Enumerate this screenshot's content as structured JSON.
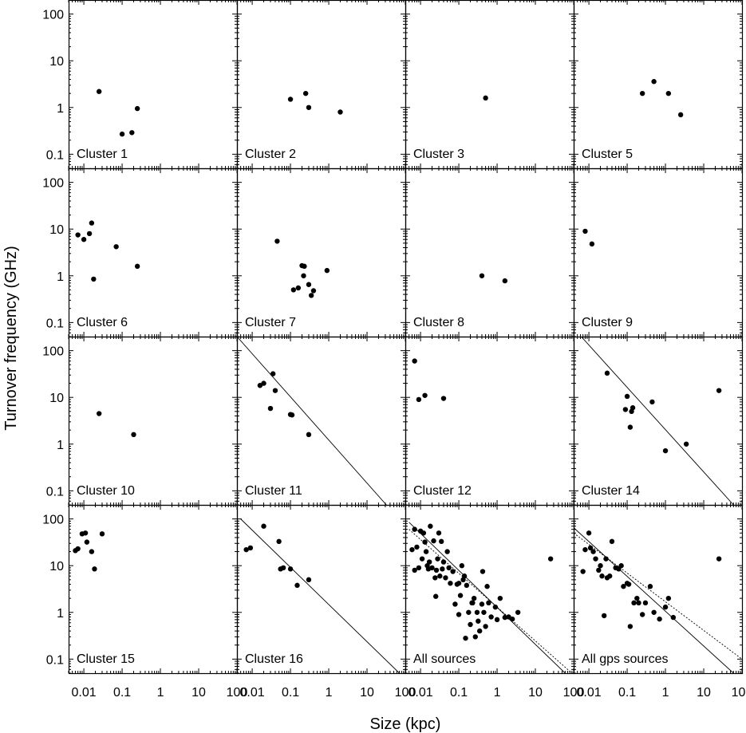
{
  "chart_data": {
    "type": "scatter",
    "xlabel": "Size (kpc)",
    "ylabel": "Turnover frequency (GHz)",
    "x_scale": "log",
    "y_scale": "log",
    "xlim": [
      0.004,
      100
    ],
    "ylim": [
      0.05,
      200
    ],
    "x_ticks": [
      "0.01",
      "0.1",
      "1",
      "10",
      "100"
    ],
    "y_ticks": [
      "100",
      "10",
      "1",
      "0.1"
    ],
    "panels": [
      {
        "label": "Cluster 1",
        "points": [
          [
            0.025,
            2.2
          ],
          [
            0.1,
            0.27
          ],
          [
            0.18,
            0.29
          ],
          [
            0.25,
            0.95
          ]
        ]
      },
      {
        "label": "Cluster 2",
        "points": [
          [
            0.1,
            1.5
          ],
          [
            0.25,
            2.0
          ],
          [
            0.3,
            1.0
          ],
          [
            2.0,
            0.8
          ]
        ]
      },
      {
        "label": "Cluster 3",
        "points": [
          [
            0.5,
            1.6
          ]
        ]
      },
      {
        "label": "Cluster 5",
        "points": [
          [
            0.25,
            2.0
          ],
          [
            0.5,
            3.6
          ],
          [
            1.2,
            2.0
          ],
          [
            2.5,
            0.7
          ]
        ]
      },
      {
        "label": "Cluster 6",
        "points": [
          [
            0.007,
            7.5
          ],
          [
            0.01,
            6.0
          ],
          [
            0.014,
            8.0
          ],
          [
            0.016,
            13.5
          ],
          [
            0.018,
            0.85
          ],
          [
            0.07,
            4.2
          ],
          [
            0.25,
            1.6
          ]
        ]
      },
      {
        "label": "Cluster 7",
        "points": [
          [
            0.045,
            5.5
          ],
          [
            0.12,
            0.5
          ],
          [
            0.16,
            0.55
          ],
          [
            0.2,
            1.65
          ],
          [
            0.22,
            1.0
          ],
          [
            0.23,
            1.6
          ],
          [
            0.3,
            0.65
          ],
          [
            0.35,
            0.38
          ],
          [
            0.4,
            0.48
          ],
          [
            0.9,
            1.3
          ]
        ]
      },
      {
        "label": "Cluster 8",
        "points": [
          [
            0.4,
            1.0
          ],
          [
            1.6,
            0.78
          ]
        ]
      },
      {
        "label": "Cluster 9",
        "points": [
          [
            0.008,
            9.0
          ],
          [
            0.012,
            4.8
          ]
        ]
      },
      {
        "label": "Cluster 10",
        "points": [
          [
            0.025,
            4.5
          ],
          [
            0.2,
            1.6
          ]
        ]
      },
      {
        "label": "Cluster 11",
        "points": [
          [
            0.016,
            18
          ],
          [
            0.02,
            20
          ],
          [
            0.03,
            5.8
          ],
          [
            0.035,
            32
          ],
          [
            0.04,
            14
          ],
          [
            0.1,
            4.3
          ],
          [
            0.11,
            4.2
          ],
          [
            0.3,
            1.6
          ]
        ],
        "fit": [
          [
            0.004,
            200
          ],
          [
            32,
            0.05
          ]
        ]
      },
      {
        "label": "Cluster 12",
        "points": [
          [
            0.007,
            60
          ],
          [
            0.009,
            9.0
          ],
          [
            0.013,
            11
          ],
          [
            0.04,
            9.5
          ]
        ]
      },
      {
        "label": "Cluster 14",
        "points": [
          [
            0.03,
            33
          ],
          [
            0.09,
            5.5
          ],
          [
            0.1,
            10.5
          ],
          [
            0.12,
            2.3
          ],
          [
            0.13,
            5.0
          ],
          [
            0.14,
            6.0
          ],
          [
            0.45,
            8.0
          ],
          [
            1.0,
            0.72
          ],
          [
            3.5,
            1.0
          ],
          [
            25,
            14
          ]
        ],
        "fit": [
          [
            0.0063,
            200
          ],
          [
            60,
            0.05
          ]
        ]
      },
      {
        "label": "Cluster 15",
        "points": [
          [
            0.006,
            21
          ],
          [
            0.007,
            23
          ],
          [
            0.009,
            48
          ],
          [
            0.011,
            50
          ],
          [
            0.012,
            32
          ],
          [
            0.016,
            20
          ],
          [
            0.019,
            8.5
          ],
          [
            0.03,
            48
          ]
        ]
      },
      {
        "label": "Cluster 16",
        "points": [
          [
            0.007,
            22
          ],
          [
            0.009,
            24
          ],
          [
            0.02,
            70
          ],
          [
            0.05,
            33
          ],
          [
            0.055,
            8.5
          ],
          [
            0.065,
            9.0
          ],
          [
            0.1,
            8.5
          ],
          [
            0.15,
            3.8
          ],
          [
            0.3,
            5.0
          ]
        ],
        "fit": [
          [
            0.005,
            100
          ],
          [
            70,
            0.05
          ]
        ]
      },
      {
        "label": "All sources",
        "points": [
          [
            0.006,
            22
          ],
          [
            0.007,
            8.0
          ],
          [
            0.007,
            60
          ],
          [
            0.008,
            25
          ],
          [
            0.009,
            9.0
          ],
          [
            0.01,
            55
          ],
          [
            0.011,
            14
          ],
          [
            0.012,
            50
          ],
          [
            0.013,
            32
          ],
          [
            0.014,
            20
          ],
          [
            0.015,
            10
          ],
          [
            0.016,
            8.5
          ],
          [
            0.017,
            12
          ],
          [
            0.018,
            70
          ],
          [
            0.02,
            9.0
          ],
          [
            0.022,
            34
          ],
          [
            0.024,
            5.5
          ],
          [
            0.025,
            2.2
          ],
          [
            0.026,
            8.0
          ],
          [
            0.028,
            14
          ],
          [
            0.03,
            50
          ],
          [
            0.032,
            6.0
          ],
          [
            0.035,
            33
          ],
          [
            0.037,
            8.5
          ],
          [
            0.04,
            12
          ],
          [
            0.045,
            5.5
          ],
          [
            0.05,
            20
          ],
          [
            0.055,
            9.0
          ],
          [
            0.06,
            4.2
          ],
          [
            0.07,
            7.5
          ],
          [
            0.08,
            1.5
          ],
          [
            0.09,
            4.0
          ],
          [
            0.1,
            0.9
          ],
          [
            0.1,
            4.2
          ],
          [
            0.11,
            2.3
          ],
          [
            0.12,
            10
          ],
          [
            0.13,
            5.0
          ],
          [
            0.14,
            6.0
          ],
          [
            0.15,
            0.28
          ],
          [
            0.16,
            3.8
          ],
          [
            0.18,
            1.0
          ],
          [
            0.2,
            0.55
          ],
          [
            0.22,
            1.6
          ],
          [
            0.23,
            1.6
          ],
          [
            0.25,
            2.0
          ],
          [
            0.27,
            0.3
          ],
          [
            0.3,
            1.0
          ],
          [
            0.32,
            0.65
          ],
          [
            0.35,
            0.4
          ],
          [
            0.4,
            1.5
          ],
          [
            0.42,
            7.5
          ],
          [
            0.45,
            1.0
          ],
          [
            0.5,
            0.5
          ],
          [
            0.55,
            3.6
          ],
          [
            0.6,
            1.6
          ],
          [
            0.7,
            0.8
          ],
          [
            0.9,
            1.3
          ],
          [
            1.0,
            0.7
          ],
          [
            1.2,
            2.0
          ],
          [
            1.6,
            0.78
          ],
          [
            2.0,
            0.8
          ],
          [
            2.5,
            0.72
          ],
          [
            3.5,
            1.0
          ],
          [
            25,
            14
          ]
        ],
        "fit": [
          [
            0.005,
            85
          ],
          [
            60,
            0.05
          ]
        ],
        "fit_dotted": [
          [
            0.005,
            60
          ],
          [
            90,
            0.05
          ]
        ]
      },
      {
        "label": "All gps sources",
        "points": [
          [
            0.007,
            7.5
          ],
          [
            0.008,
            22
          ],
          [
            0.01,
            50
          ],
          [
            0.011,
            24
          ],
          [
            0.013,
            20
          ],
          [
            0.015,
            14
          ],
          [
            0.018,
            8.0
          ],
          [
            0.02,
            10
          ],
          [
            0.022,
            6.0
          ],
          [
            0.025,
            0.85
          ],
          [
            0.028,
            14
          ],
          [
            0.03,
            5.5
          ],
          [
            0.035,
            6.0
          ],
          [
            0.04,
            33
          ],
          [
            0.05,
            9.0
          ],
          [
            0.06,
            8.5
          ],
          [
            0.07,
            10
          ],
          [
            0.08,
            3.6
          ],
          [
            0.1,
            4.2
          ],
          [
            0.11,
            4.0
          ],
          [
            0.12,
            0.5
          ],
          [
            0.15,
            1.6
          ],
          [
            0.18,
            2.0
          ],
          [
            0.2,
            1.6
          ],
          [
            0.25,
            0.9
          ],
          [
            0.3,
            1.6
          ],
          [
            0.4,
            3.6
          ],
          [
            0.5,
            1.0
          ],
          [
            0.7,
            0.72
          ],
          [
            1.0,
            1.3
          ],
          [
            1.2,
            2.0
          ],
          [
            1.6,
            0.78
          ],
          [
            25,
            14
          ]
        ],
        "fit": [
          [
            0.004,
            65
          ],
          [
            60,
            0.05
          ]
        ],
        "fit_dotted": [
          [
            0.004,
            50
          ],
          [
            100,
            0.1
          ]
        ]
      }
    ]
  }
}
